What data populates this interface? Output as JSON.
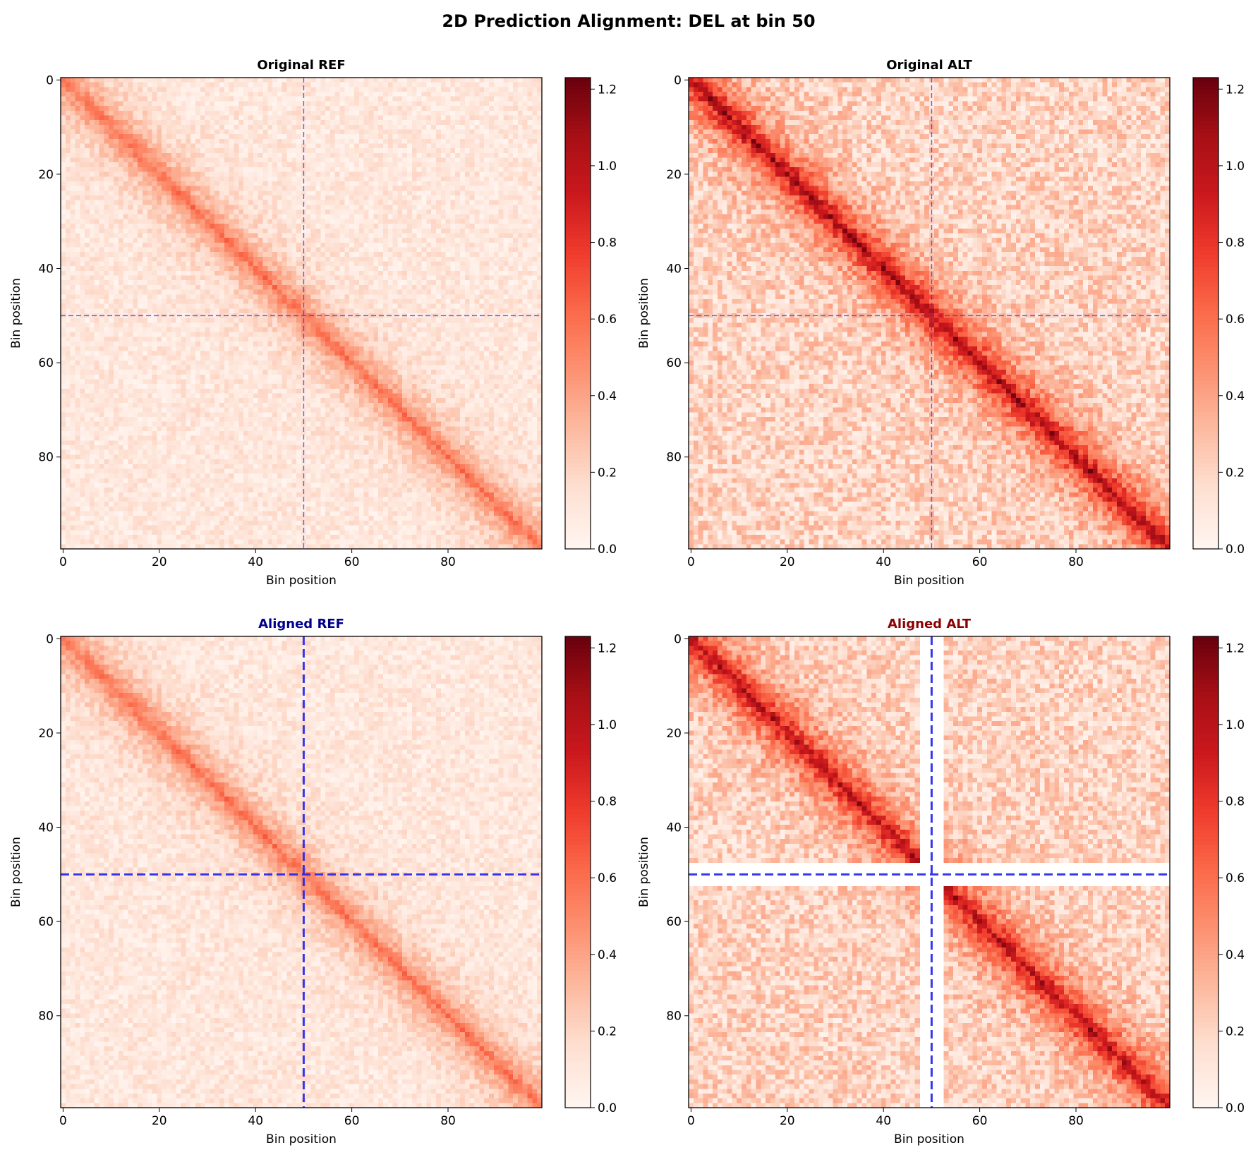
{
  "figure": {
    "title": "2D Prediction Alignment: DEL at bin 50"
  },
  "chart_data": [
    {
      "type": "heatmap",
      "title": "Original REF",
      "title_color": "#000000",
      "xlabel": "Bin position",
      "ylabel": "Bin position",
      "size": 100,
      "xlim": [
        0,
        99
      ],
      "ylim": [
        99,
        0
      ],
      "x_ticks": [
        0,
        20,
        40,
        60,
        80
      ],
      "y_ticks": [
        0,
        20,
        40,
        60,
        80
      ],
      "colormap": "Reds",
      "vmin": 0.0,
      "vmax": 1.23,
      "colorbar_ticks": [
        "0.0",
        "0.2",
        "0.4",
        "0.6",
        "0.8",
        "1.0",
        "1.2"
      ],
      "colorbar_values": [
        0.0,
        0.2,
        0.4,
        0.6,
        0.8,
        1.0,
        1.2
      ],
      "diagonal_peak": 0.58,
      "background": 0.1,
      "noise": 0.12,
      "deleted_bins": [],
      "marker_bin": 50,
      "marker_line_style": "thin-dashed",
      "marker_color": "#3333ee",
      "seed": 11
    },
    {
      "type": "heatmap",
      "title": "Original ALT",
      "title_color": "#000000",
      "xlabel": "Bin position",
      "ylabel": "Bin position",
      "size": 100,
      "xlim": [
        0,
        99
      ],
      "ylim": [
        99,
        0
      ],
      "x_ticks": [
        0,
        20,
        40,
        60,
        80
      ],
      "y_ticks": [
        0,
        20,
        40,
        60,
        80
      ],
      "colormap": "Reds",
      "vmin": 0.0,
      "vmax": 1.23,
      "colorbar_ticks": [
        "0.0",
        "0.2",
        "0.4",
        "0.6",
        "0.8",
        "1.0",
        "1.2"
      ],
      "colorbar_values": [
        0.0,
        0.2,
        0.4,
        0.6,
        0.8,
        1.0,
        1.2
      ],
      "diagonal_peak": 1.05,
      "background": 0.2,
      "noise": 0.22,
      "deleted_bins": [],
      "marker_bin": 50,
      "marker_line_style": "thin-dashed",
      "marker_color": "#3333ee",
      "seed": 23
    },
    {
      "type": "heatmap",
      "title": "Aligned REF",
      "title_color": "#00008b",
      "xlabel": "Bin position",
      "ylabel": "Bin position",
      "size": 100,
      "xlim": [
        0,
        99
      ],
      "ylim": [
        99,
        0
      ],
      "x_ticks": [
        0,
        20,
        40,
        60,
        80
      ],
      "y_ticks": [
        0,
        20,
        40,
        60,
        80
      ],
      "colormap": "Reds",
      "vmin": 0.0,
      "vmax": 1.23,
      "colorbar_ticks": [
        "0.0",
        "0.2",
        "0.4",
        "0.6",
        "0.8",
        "1.0",
        "1.2"
      ],
      "colorbar_values": [
        0.0,
        0.2,
        0.4,
        0.6,
        0.8,
        1.0,
        1.2
      ],
      "diagonal_peak": 0.58,
      "background": 0.1,
      "noise": 0.12,
      "deleted_bins": [],
      "marker_bin": 50,
      "marker_line_style": "thick-dashed",
      "marker_color": "#2222ee",
      "seed": 11
    },
    {
      "type": "heatmap",
      "title": "Aligned ALT",
      "title_color": "#8b0000",
      "xlabel": "Bin position",
      "ylabel": "Bin position",
      "size": 100,
      "xlim": [
        0,
        99
      ],
      "ylim": [
        99,
        0
      ],
      "x_ticks": [
        0,
        20,
        40,
        60,
        80
      ],
      "y_ticks": [
        0,
        20,
        40,
        60,
        80
      ],
      "colormap": "Reds",
      "vmin": 0.0,
      "vmax": 1.23,
      "colorbar_ticks": [
        "0.0",
        "0.2",
        "0.4",
        "0.6",
        "0.8",
        "1.0",
        "1.2"
      ],
      "colorbar_values": [
        0.0,
        0.2,
        0.4,
        0.6,
        0.8,
        1.0,
        1.2
      ],
      "diagonal_peak": 1.0,
      "background": 0.2,
      "noise": 0.22,
      "deleted_bins": [
        48,
        49,
        50,
        51,
        52
      ],
      "marker_bin": 50,
      "marker_line_style": "thick-dashed",
      "marker_color": "#2222ee",
      "seed": 37
    }
  ]
}
